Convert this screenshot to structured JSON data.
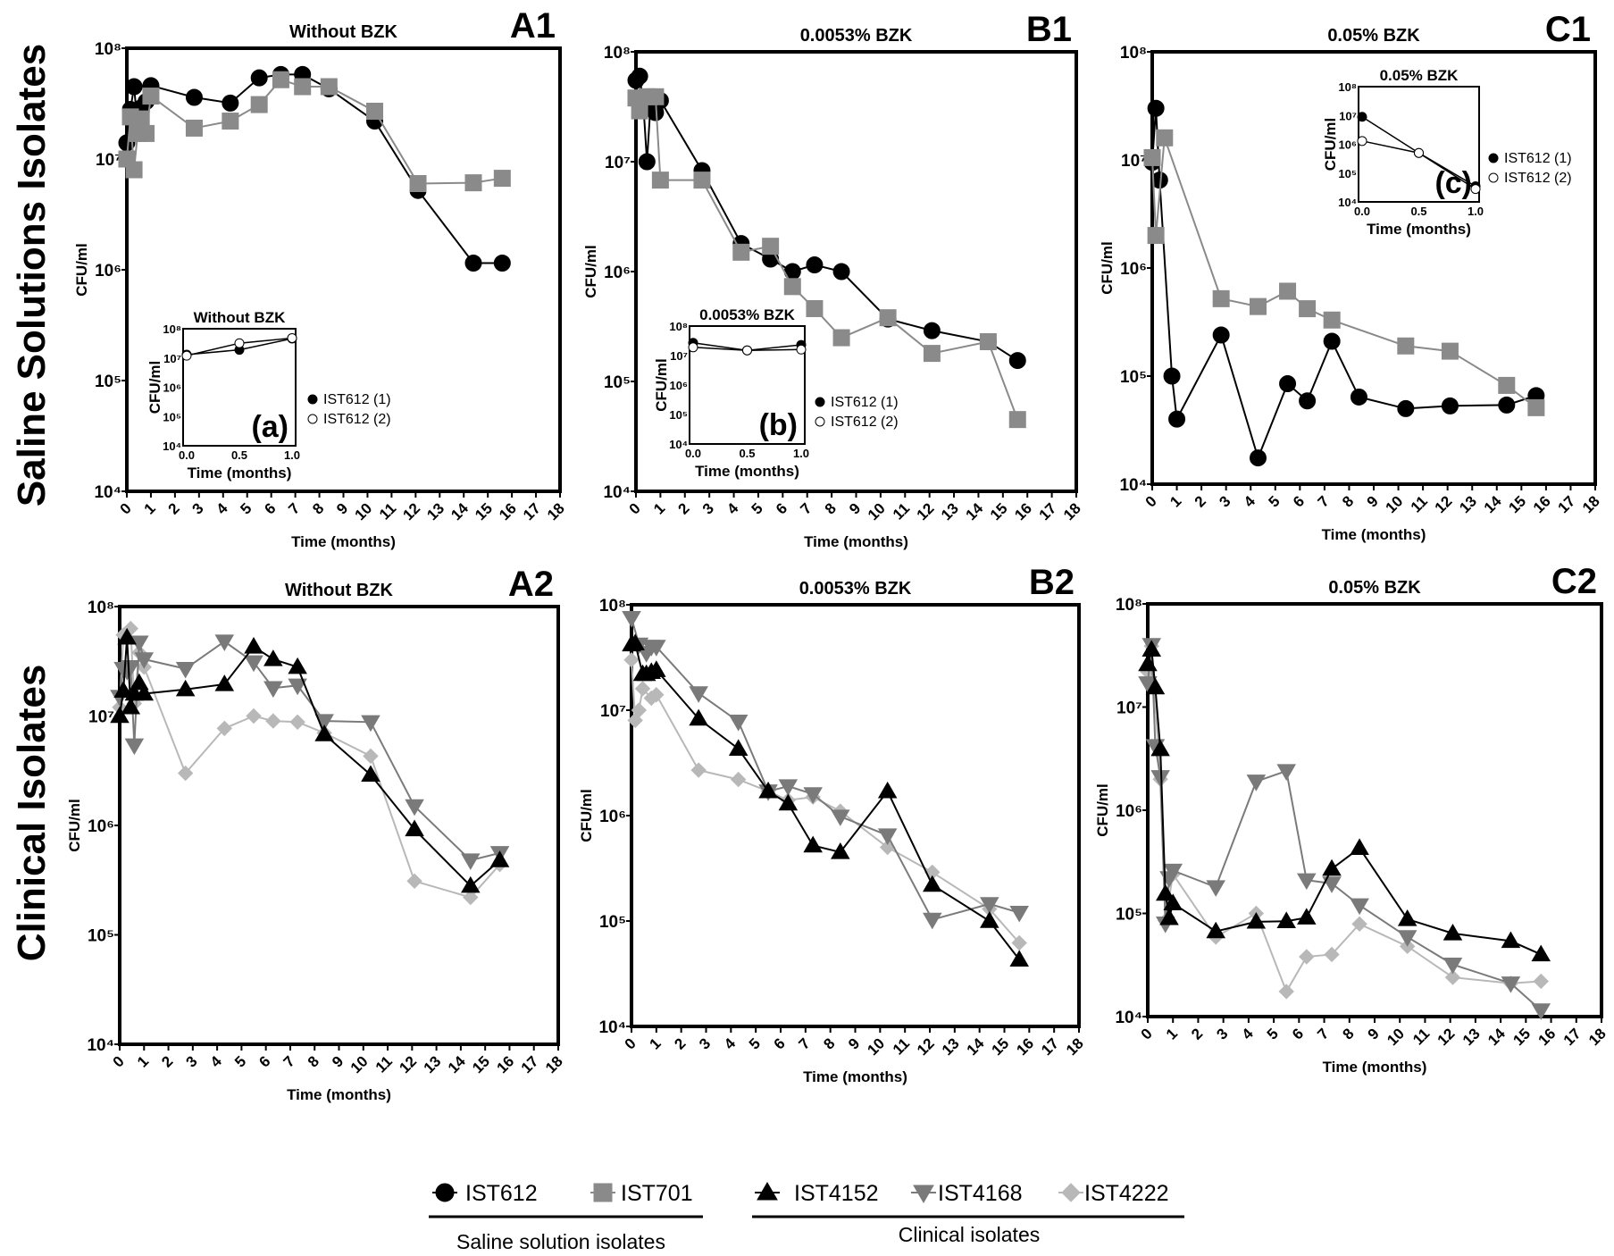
{
  "row_labels": [
    "Saline Solutions Isolates",
    "Clinical Isolates"
  ],
  "legend": {
    "groups": [
      {
        "label": "Saline solution isolates",
        "series": [
          "IST612",
          "IST701"
        ]
      },
      {
        "label": "Clinical isolates",
        "series": [
          "IST4152",
          "IST4168",
          "IST4222"
        ]
      }
    ]
  },
  "styles": {
    "IST612": {
      "marker": "circle",
      "color": "#000000"
    },
    "IST701": {
      "marker": "square",
      "color": "#8a8a8a"
    },
    "IST4152": {
      "marker": "triangle-up",
      "color": "#000000"
    },
    "IST4168": {
      "marker": "triangle-down",
      "color": "#7a7a7a"
    },
    "IST4222": {
      "marker": "diamond",
      "color": "#b8b8b8"
    }
  },
  "chart_data": [
    {
      "id": "A1",
      "type": "line",
      "title": "Without BZK",
      "letter": "A1",
      "xlabel": "Time (months)",
      "ylabel": "CFU/ml",
      "yscale": "log",
      "xlim": [
        0,
        18
      ],
      "ylim": [
        10000,
        100000000
      ],
      "x_ticks": [
        "0",
        "1",
        "2",
        "3",
        "4",
        "5",
        "6",
        "7",
        "8",
        "9",
        "10",
        "11",
        "12",
        "13",
        "14",
        "15",
        "16",
        "17",
        "18"
      ],
      "y_ticks": [
        "10⁴",
        "10⁵",
        "10⁶",
        "10⁷",
        "10⁸"
      ],
      "series": [
        {
          "name": "IST612",
          "x": [
            0,
            0.15,
            0.3,
            0.45,
            0.6,
            0.8,
            1,
            2.8,
            4.3,
            5.5,
            6.4,
            7.3,
            8.4,
            10.3,
            12.1,
            14.4,
            15.6
          ],
          "y": [
            14000000.0,
            28000000.0,
            45000000.0,
            20000000.0,
            29000000.0,
            33000000.0,
            46000000.0,
            36000000.0,
            32000000.0,
            54000000.0,
            58000000.0,
            58000000.0,
            43000000.0,
            22000000.0,
            5200000.0,
            1150000.0,
            1150000.0
          ]
        },
        {
          "name": "IST701",
          "x": [
            0,
            0.15,
            0.3,
            0.45,
            0.6,
            0.8,
            1,
            2.8,
            4.3,
            5.5,
            6.4,
            7.3,
            8.4,
            10.3,
            12.1,
            14.4,
            15.6
          ],
          "y": [
            10000000.0,
            24000000.0,
            8000000.0,
            17000000.0,
            23000000.0,
            17000000.0,
            37000000.0,
            19000000.0,
            22000000.0,
            31000000.0,
            52000000.0,
            45000000.0,
            45000000.0,
            27000000.0,
            6000000.0,
            6100000.0,
            6700000.0
          ]
        }
      ],
      "inset": {
        "title": "Without BZK",
        "tag": "(a)",
        "xlabel": "Time (months)",
        "ylabel": "CFU/ml",
        "x_ticks": [
          "0.0",
          "0.5",
          "1.0"
        ],
        "y_ticks": [
          "10⁴",
          "10⁵",
          "10⁶",
          "10⁷",
          "10⁸"
        ],
        "xlim": [
          0,
          1
        ],
        "ylim": [
          10000,
          100000000
        ],
        "series": [
          {
            "name": "IST612 (1)",
            "filled": true,
            "x": [
              0,
              0.5,
              1
            ],
            "y": [
              13000000.0,
              19000000.0,
              46000000.0
            ]
          },
          {
            "name": "IST612 (2)",
            "filled": false,
            "x": [
              0,
              0.5,
              1
            ],
            "y": [
              12000000.0,
              32000000.0,
              48000000.0
            ]
          }
        ]
      }
    },
    {
      "id": "B1",
      "type": "line",
      "title": "0.0053% BZK",
      "letter": "B1",
      "xlabel": "Time (months)",
      "ylabel": "CFU/ml",
      "yscale": "log",
      "xlim": [
        0,
        18
      ],
      "ylim": [
        10000,
        100000000
      ],
      "x_ticks": [
        "0",
        "1",
        "2",
        "3",
        "4",
        "5",
        "6",
        "7",
        "8",
        "9",
        "10",
        "11",
        "12",
        "13",
        "14",
        "15",
        "16",
        "17",
        "18"
      ],
      "y_ticks": [
        "10⁴",
        "10⁵",
        "10⁶",
        "10⁷",
        "10⁸"
      ],
      "series": [
        {
          "name": "IST612",
          "x": [
            0,
            0.15,
            0.3,
            0.45,
            0.6,
            0.8,
            1,
            2.7,
            4.3,
            5.5,
            6.4,
            7.3,
            8.4,
            10.3,
            12.1,
            14.4,
            15.6
          ],
          "y": [
            55000000.0,
            60000000.0,
            34000000.0,
            10000000.0,
            34000000.0,
            28000000.0,
            36000000.0,
            8300000.0,
            1800000.0,
            1300000.0,
            1000000.0,
            1150000.0,
            1000000.0,
            370000.0,
            290000.0,
            230000.0,
            155000.0
          ]
        },
        {
          "name": "IST701",
          "x": [
            0,
            0.15,
            0.45,
            0.8,
            1,
            2.7,
            4.3,
            5.5,
            6.4,
            7.3,
            8.4,
            10.3,
            12.1,
            14.4,
            15.6
          ],
          "y": [
            38000000.0,
            29000000.0,
            39000000.0,
            39000000.0,
            6800000.0,
            6800000.0,
            1500000.0,
            1700000.0,
            730000.0,
            460000.0,
            250000.0,
            380000.0,
            180000.0,
            230000.0,
            45000.0
          ]
        }
      ],
      "inset": {
        "title": "0.0053%  BZK",
        "tag": "(b)",
        "xlabel": "Time (months)",
        "ylabel": "CFU/ml",
        "x_ticks": [
          "0.0",
          "0.5",
          "1.0"
        ],
        "y_ticks": [
          "10⁴",
          "10⁵",
          "10⁶",
          "10⁷",
          "10⁸"
        ],
        "xlim": [
          0,
          1
        ],
        "ylim": [
          10000,
          100000000
        ],
        "series": [
          {
            "name": "IST612 (1)",
            "filled": true,
            "x": [
              0,
              0.5,
              1
            ],
            "y": [
              27000000.0,
              15000000.0,
              23000000.0
            ]
          },
          {
            "name": "IST612 (2)",
            "filled": false,
            "x": [
              0,
              0.5,
              1
            ],
            "y": [
              19000000.0,
              15000000.0,
              16000000.0
            ]
          }
        ]
      }
    },
    {
      "id": "C1",
      "type": "line",
      "title": "0.05% BZK",
      "letter": "C1",
      "xlabel": "Time (months)",
      "ylabel": "CFU/ml",
      "yscale": "log",
      "xlim": [
        0,
        18
      ],
      "ylim": [
        10000,
        100000000
      ],
      "x_ticks": [
        "0",
        "1",
        "2",
        "3",
        "4",
        "5",
        "6",
        "7",
        "8",
        "9",
        "10",
        "11",
        "12",
        "13",
        "14",
        "15",
        "16",
        "17",
        "18"
      ],
      "y_ticks": [
        "10⁴",
        "10⁵",
        "10⁶",
        "10⁷",
        "10⁸"
      ],
      "series": [
        {
          "name": "IST612",
          "x": [
            0,
            0.15,
            0.3,
            0.8,
            1,
            2.8,
            4.3,
            5.5,
            6.3,
            7.3,
            8.4,
            10.3,
            12.1,
            14.4,
            15.6
          ],
          "y": [
            9500000.0,
            30000000.0,
            6500000.0,
            100000.0,
            40000.0,
            240000.0,
            17500.0,
            85000.0,
            59000.0,
            210000.0,
            64000.0,
            50000.0,
            53000.0,
            54000.0,
            66000.0
          ]
        },
        {
          "name": "IST701",
          "x": [
            0,
            0.15,
            0.5,
            2.8,
            4.3,
            5.5,
            6.3,
            7.3,
            10.3,
            12.1,
            14.4,
            15.6
          ],
          "y": [
            10500000.0,
            2000000.0,
            16000000.0,
            520000.0,
            440000.0,
            610000.0,
            420000.0,
            330000.0,
            190000.0,
            170000.0,
            82000.0,
            51000.0
          ]
        }
      ],
      "inset": {
        "title": "0.05%  BZK",
        "tag": "(c)",
        "xlabel": "Time (months)",
        "ylabel": "CFU/ml",
        "x_ticks": [
          "0.0",
          "0.5",
          "1.0"
        ],
        "y_ticks": [
          "10⁴",
          "10⁵",
          "10⁶",
          "10⁷",
          "10⁸"
        ],
        "xlim": [
          0,
          1
        ],
        "ylim": [
          10000,
          100000000
        ],
        "series": [
          {
            "name": "IST612 (1)",
            "filled": true,
            "x": [
              0,
              0.5,
              1
            ],
            "y": [
              9000000.0,
              500000.0,
              35000.0
            ]
          },
          {
            "name": "IST612 (2)",
            "filled": false,
            "x": [
              0,
              0.5,
              1
            ],
            "y": [
              1300000.0,
              500000.0,
              28000.0
            ]
          }
        ]
      }
    },
    {
      "id": "A2",
      "type": "line",
      "title": "Without BZK",
      "letter": "A2",
      "xlabel": "Time (months)",
      "ylabel": "CFU/ml",
      "yscale": "log",
      "xlim": [
        0,
        18
      ],
      "ylim": [
        10000,
        100000000
      ],
      "x_ticks": [
        "0",
        "1",
        "2",
        "3",
        "4",
        "5",
        "6",
        "7",
        "8",
        "9",
        "10",
        "11",
        "12",
        "13",
        "14",
        "15",
        "16",
        "17",
        "18"
      ],
      "y_ticks": [
        "10⁴",
        "10⁵",
        "10⁶",
        "10⁷",
        "10⁸"
      ],
      "series": [
        {
          "name": "IST4222",
          "x": [
            0,
            0.15,
            0.45,
            0.6,
            0.8,
            1,
            2.7,
            4.3,
            5.5,
            6.3,
            7.3,
            8.4,
            10.3,
            12.1,
            14.4,
            15.6
          ],
          "y": [
            12000000.0,
            55000000.0,
            63000000.0,
            13000000.0,
            38000000.0,
            28000000.0,
            3000000.0,
            7700000.0,
            10000000.0,
            9000000.0,
            8800000.0,
            7000000.0,
            4300000.0,
            310000.0,
            220000.0,
            440000.0
          ]
        },
        {
          "name": "IST4168",
          "x": [
            0,
            0.15,
            0.3,
            0.45,
            0.6,
            0.8,
            1,
            2.7,
            4.3,
            5.5,
            6.3,
            7.3,
            8.4,
            10.3,
            12.1,
            14.4,
            15.6
          ],
          "y": [
            15000000.0,
            27000000.0,
            26000000.0,
            28000000.0,
            5400000.0,
            47000000.0,
            33000000.0,
            27000000.0,
            48000000.0,
            31000000.0,
            18000000.0,
            19000000.0,
            9000000.0,
            8800000.0,
            1500000.0,
            480000.0,
            560000.0
          ]
        },
        {
          "name": "IST4152",
          "x": [
            0,
            0.15,
            0.3,
            0.45,
            0.6,
            0.8,
            1,
            2.7,
            4.3,
            5.5,
            6.3,
            7.3,
            8.4,
            10.3,
            12.1,
            14.4,
            15.6
          ],
          "y": [
            10000000.0,
            17000000.0,
            52000000.0,
            12000000.0,
            16000000.0,
            20000000.0,
            16000000.0,
            17500000.0,
            19500000.0,
            43000000.0,
            33000000.0,
            28000000.0,
            6800000.0,
            2900000.0,
            920000.0,
            280000.0,
            480000.0
          ]
        }
      ]
    },
    {
      "id": "B2",
      "type": "line",
      "title": "0.0053% BZK",
      "letter": "B2",
      "xlabel": "Time (months)",
      "ylabel": "CFU/ml",
      "yscale": "log",
      "xlim": [
        0,
        18
      ],
      "ylim": [
        10000,
        100000000
      ],
      "x_ticks": [
        "0",
        "1",
        "2",
        "3",
        "4",
        "5",
        "6",
        "7",
        "8",
        "9",
        "10",
        "11",
        "12",
        "13",
        "14",
        "15",
        "16",
        "17",
        "18"
      ],
      "y_ticks": [
        "10⁴",
        "10⁵",
        "10⁶",
        "10⁷",
        "10⁸"
      ],
      "series": [
        {
          "name": "IST4222",
          "x": [
            0,
            0.15,
            0.3,
            0.45,
            0.8,
            1,
            2.7,
            4.3,
            5.5,
            6.3,
            7.3,
            8.4,
            10.3,
            12.1,
            14.4,
            15.6
          ],
          "y": [
            30000000.0,
            8000000.0,
            10000000.0,
            16000000.0,
            13000000.0,
            14000000.0,
            2700000.0,
            2200000.0,
            1700000.0,
            1400000.0,
            1500000.0,
            1100000.0,
            500000.0,
            290000.0,
            130000.0,
            62000.0
          ]
        },
        {
          "name": "IST4168",
          "x": [
            0,
            0.3,
            0.6,
            0.8,
            1,
            2.7,
            4.3,
            5.5,
            6.3,
            7.3,
            8.4,
            10.3,
            12.1,
            14.4,
            15.6
          ],
          "y": [
            75000000.0,
            42000000.0,
            35000000.0,
            40000000.0,
            40000000.0,
            14500000.0,
            7800000.0,
            1700000.0,
            1900000.0,
            1600000.0,
            980000.0,
            650000.0,
            103000.0,
            145000.0,
            120000.0
          ]
        },
        {
          "name": "IST4152",
          "x": [
            0,
            0.15,
            0.45,
            0.6,
            0.8,
            1,
            2.7,
            4.3,
            5.5,
            6.3,
            7.3,
            8.4,
            10.3,
            12.1,
            14.4,
            15.6
          ],
          "y": [
            42000000.0,
            43000000.0,
            22000000.0,
            22000000.0,
            23000000.0,
            24000000.0,
            8300000.0,
            4300000.0,
            1700000.0,
            1300000.0,
            520000.0,
            450000.0,
            1700000.0,
            220000.0,
            100000.0,
            43000.0
          ]
        }
      ]
    },
    {
      "id": "C2",
      "type": "line",
      "title": "0.05% BZK",
      "letter": "C2",
      "xlabel": "Time (months)",
      "ylabel": "CFU/ml",
      "yscale": "log",
      "xlim": [
        0,
        18
      ],
      "ylim": [
        10000,
        100000000
      ],
      "x_ticks": [
        "0",
        "1",
        "2",
        "3",
        "4",
        "5",
        "6",
        "7",
        "8",
        "9",
        "10",
        "11",
        "12",
        "13",
        "14",
        "15",
        "16",
        "17",
        "18"
      ],
      "y_ticks": [
        "10⁴",
        "10⁵",
        "10⁶",
        "10⁷",
        "10⁸"
      ],
      "series": [
        {
          "name": "IST4222",
          "x": [
            0,
            0.15,
            0.5,
            0.7,
            1,
            2.7,
            4.3,
            5.5,
            6.3,
            7.3,
            8.4,
            10.3,
            12.1,
            14.4,
            15.6
          ],
          "y": [
            22000000.0,
            39000000.0,
            2000000.0,
            85000.0,
            240000.0,
            59000.0,
            100000.0,
            17500.0,
            38000.0,
            40000.0,
            79000.0,
            48000.0,
            24000.0,
            21000.0,
            22000.0
          ]
        },
        {
          "name": "IST4168",
          "x": [
            0,
            0.15,
            0.3,
            0.5,
            0.7,
            0.85,
            1,
            2.7,
            4.3,
            5.5,
            6.3,
            7.3,
            8.4,
            10.3,
            12.1,
            14.4,
            15.6
          ],
          "y": [
            17000000.0,
            40000000.0,
            4200000.0,
            2100000.0,
            80000.0,
            220000.0,
            260000.0,
            180000.0,
            1900000.0,
            2400000.0,
            210000.0,
            195000.0,
            120000.0,
            59000.0,
            32000.0,
            21000.0,
            11500.0
          ]
        },
        {
          "name": "IST4152",
          "x": [
            0,
            0.15,
            0.3,
            0.5,
            0.7,
            0.85,
            1,
            2.7,
            4.3,
            5.5,
            6.3,
            7.3,
            8.4,
            10.3,
            12.1,
            14.4,
            15.6
          ],
          "y": [
            26000000.0,
            36000000.0,
            15500000.0,
            3900000.0,
            155000.0,
            90000.0,
            125000.0,
            67000.0,
            83000.0,
            84000.0,
            91000.0,
            270000.0,
            430000.0,
            88000.0,
            64000.0,
            54000.0,
            40000.0
          ]
        }
      ]
    }
  ]
}
